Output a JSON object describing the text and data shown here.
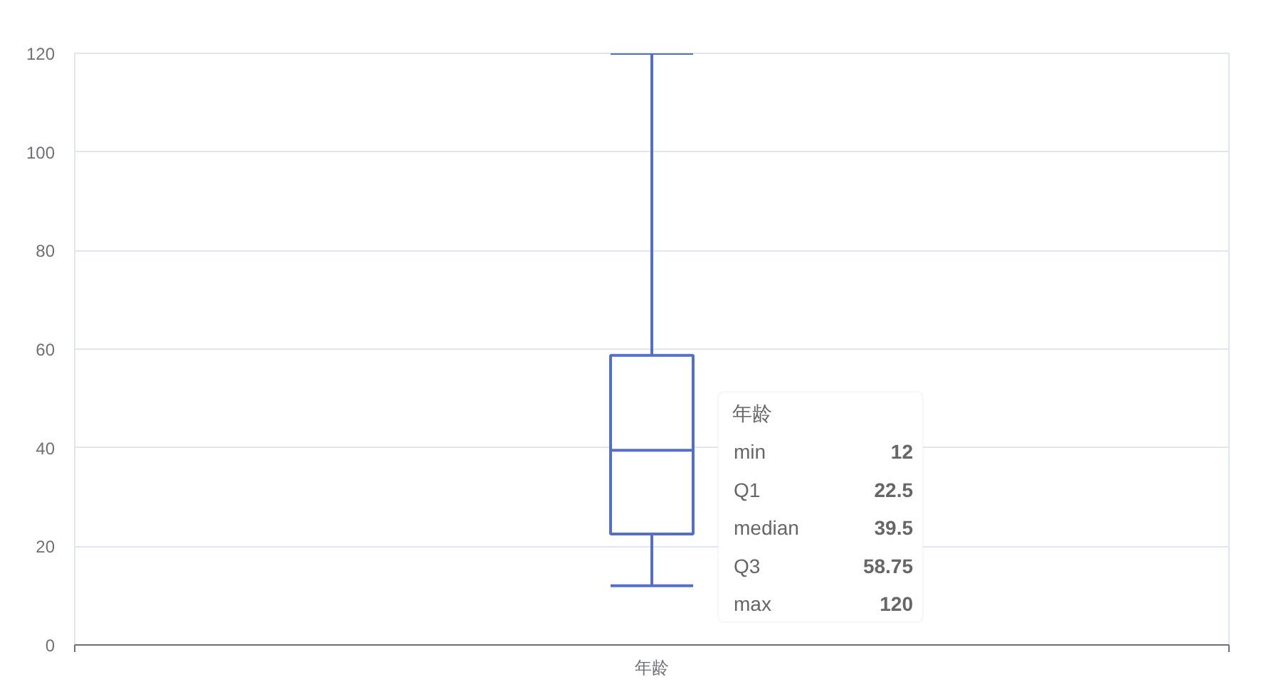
{
  "chart_data": {
    "type": "box",
    "categories": [
      "年龄"
    ],
    "boxes": [
      {
        "low": 12,
        "q1": 22.5,
        "median": 39.5,
        "q3": 58.75,
        "high": 120
      }
    ],
    "color": "#5470c6",
    "ylim": [
      0,
      120
    ],
    "yticks": [
      0,
      20,
      40,
      60,
      80,
      100,
      120
    ],
    "grid": "y",
    "annotations": [
      "min",
      "12",
      "Q1",
      "22.5",
      "median",
      "39.5",
      "Q3",
      "58.75",
      "max",
      "120"
    ]
  }
}
